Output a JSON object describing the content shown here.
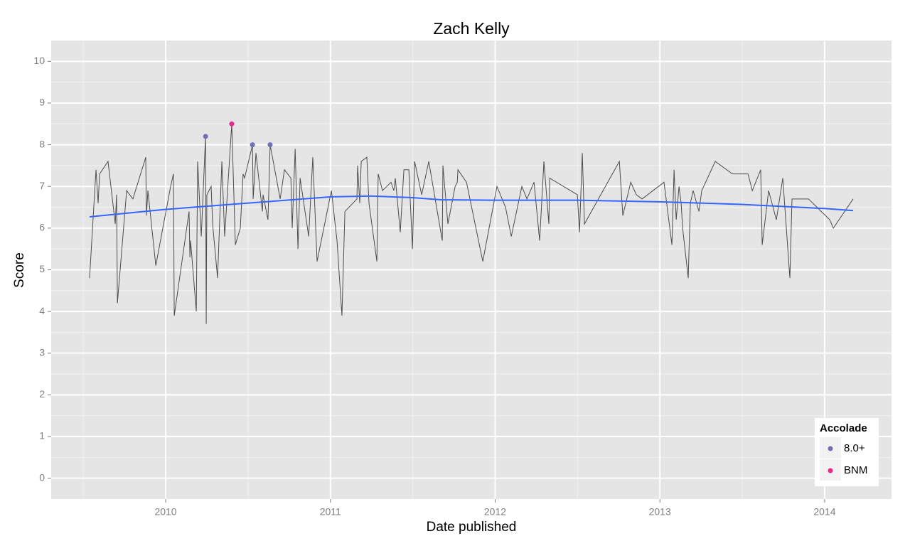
{
  "chart_data": {
    "type": "line",
    "title": "Zach Kelly",
    "x_label": "Date published",
    "y_label": "Score",
    "xlim": [
      2009.305,
      2014.406
    ],
    "xticks": [
      2010,
      2011,
      2012,
      2013,
      2014
    ],
    "ylim": [
      -0.5,
      10.5
    ],
    "yticks": [
      0,
      1,
      2,
      3,
      4,
      5,
      6,
      7,
      8,
      9,
      10
    ],
    "grid": true,
    "legend": {
      "title": "Accolade",
      "position": "bottom-right"
    },
    "series": [
      {
        "color": "#4d4d4d",
        "type": "line",
        "x": [
          2009.538,
          2009.577,
          2009.59,
          2009.599,
          2009.65,
          2009.694,
          2009.702,
          2009.707,
          2009.763,
          2009.801,
          2009.879,
          2009.883,
          2009.892,
          2009.94,
          2010.03,
          2010.047,
          2010.052,
          2010.142,
          2010.147,
          2010.151,
          2010.186,
          2010.194,
          2010.216,
          2010.242,
          2010.246,
          2010.25,
          2010.276,
          2010.285,
          2010.315,
          2010.341,
          2010.358,
          2010.401,
          2010.423,
          2010.453,
          2010.47,
          2010.479,
          2010.527,
          2010.531,
          2010.548,
          2010.587,
          2010.591,
          2010.621,
          2010.634,
          2010.695,
          2010.721,
          2010.76,
          2010.768,
          2010.786,
          2010.803,
          2010.816,
          2010.868,
          2010.893,
          2010.919,
          2011.006,
          2011.04,
          2011.07,
          2011.088,
          2011.161,
          2011.165,
          2011.178,
          2011.187,
          2011.221,
          2011.234,
          2011.282,
          2011.29,
          2011.316,
          2011.368,
          2011.385,
          2011.394,
          2011.424,
          2011.446,
          2011.476,
          2011.498,
          2011.511,
          2011.554,
          2011.597,
          2011.679,
          2011.683,
          2011.713,
          2011.757,
          2011.77,
          2011.774,
          2011.826,
          2011.925,
          2012.011,
          2012.063,
          2012.098,
          2012.162,
          2012.193,
          2012.236,
          2012.27,
          2012.296,
          2012.326,
          2012.331,
          2012.499,
          2012.512,
          2012.529,
          2012.542,
          2012.754,
          2012.775,
          2012.823,
          2012.857,
          2012.892,
          2013.025,
          2013.073,
          2013.086,
          2013.099,
          2013.116,
          2013.129,
          2013.138,
          2013.172,
          2013.185,
          2013.202,
          2013.237,
          2013.254,
          2013.336,
          2013.44,
          2013.535,
          2013.561,
          2013.612,
          2013.621,
          2013.66,
          2013.707,
          2013.746,
          2013.789,
          2013.802,
          2013.902,
          2014.031,
          2014.053,
          2014.173
        ],
        "values": [
          4.8,
          7.4,
          6.6,
          7.3,
          7.6,
          6.1,
          6.8,
          4.2,
          6.9,
          6.7,
          7.7,
          6.3,
          6.9,
          5.1,
          7.0,
          7.3,
          3.9,
          6.4,
          5.3,
          5.7,
          4.0,
          7.6,
          5.8,
          8.2,
          3.7,
          6.8,
          7.0,
          6.1,
          4.8,
          7.6,
          5.8,
          8.5,
          5.6,
          6.0,
          7.3,
          7.2,
          8.0,
          6.7,
          7.8,
          6.4,
          6.8,
          6.2,
          8.0,
          6.7,
          7.4,
          7.2,
          6.0,
          7.9,
          5.5,
          7.2,
          5.8,
          7.7,
          5.2,
          6.9,
          5.7,
          3.9,
          6.4,
          6.7,
          7.5,
          6.6,
          7.6,
          7.7,
          6.6,
          5.2,
          7.3,
          6.9,
          7.1,
          6.9,
          7.2,
          5.9,
          7.4,
          7.4,
          5.5,
          7.6,
          6.8,
          7.6,
          5.7,
          7.5,
          6.1,
          7.0,
          7.1,
          7.4,
          7.1,
          5.2,
          7.0,
          6.5,
          5.8,
          7.0,
          6.7,
          7.1,
          5.7,
          7.6,
          6.1,
          7.2,
          6.8,
          5.9,
          7.8,
          6.1,
          7.6,
          6.3,
          7.1,
          6.8,
          6.7,
          7.1,
          5.6,
          7.4,
          6.2,
          7.0,
          6.6,
          6.0,
          4.8,
          6.6,
          6.9,
          6.4,
          6.9,
          7.6,
          7.3,
          7.3,
          6.9,
          7.4,
          5.6,
          6.9,
          6.2,
          7.2,
          4.8,
          6.7,
          6.7,
          6.2,
          6.0,
          6.7
        ]
      },
      {
        "color": "#3366ff",
        "type": "line",
        "x": [
          2009.538,
          2010.0,
          2010.501,
          2011.002,
          2011.248,
          2011.498,
          2011.67,
          2012.0,
          2012.496,
          2012.996,
          2013.492,
          2014.0,
          2014.173
        ],
        "values": [
          6.27,
          6.45,
          6.6,
          6.75,
          6.77,
          6.73,
          6.68,
          6.67,
          6.67,
          6.63,
          6.57,
          6.47,
          6.42
        ]
      },
      {
        "name": "8.0+",
        "color": "#7570b3",
        "type": "scatter",
        "x": [
          2010.242,
          2010.527,
          2010.634
        ],
        "values": [
          8.2,
          8.0,
          8.0
        ]
      },
      {
        "name": "BNM",
        "color": "#e7298a",
        "type": "scatter",
        "x": [
          2010.401
        ],
        "values": [
          8.5
        ]
      }
    ]
  }
}
